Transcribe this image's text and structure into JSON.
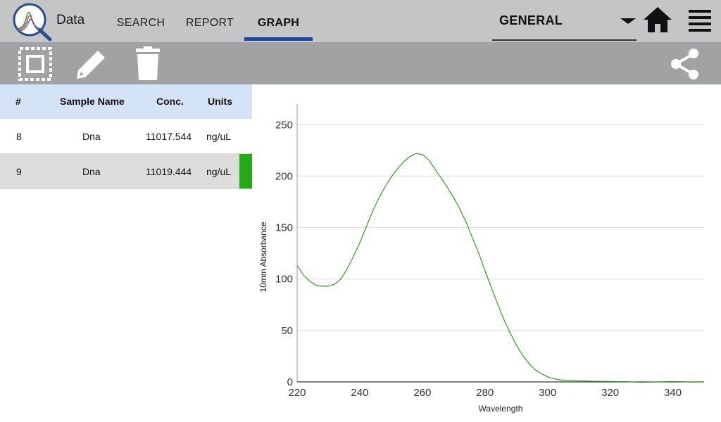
{
  "header": {
    "app_title": "Data",
    "tabs": [
      {
        "label": "SEARCH",
        "active": false
      },
      {
        "label": "REPORT",
        "active": false
      },
      {
        "label": "GRAPH",
        "active": true
      }
    ],
    "mode_select": {
      "value": "GENERAL"
    },
    "icons": {
      "logo": "spectrum-magnifier-logo",
      "home": "home-icon",
      "menu": "hamburger-menu-icon",
      "dropdown": "chevron-down-icon"
    }
  },
  "toolbar": {
    "icons": [
      "select-all-icon",
      "edit-pencil-icon",
      "trash-icon",
      "share-icon"
    ]
  },
  "table": {
    "columns": [
      "#",
      "Sample Name",
      "Conc.",
      "Units"
    ],
    "rows": [
      {
        "num": "8",
        "name": "Dna",
        "conc": "11017.544",
        "units": "ng/uL",
        "selected": false
      },
      {
        "num": "9",
        "name": "Dna",
        "conc": "11019.444",
        "units": "ng/uL",
        "selected": true,
        "marker_color": "#22ab16"
      }
    ]
  },
  "chart_data": {
    "type": "line",
    "xlabel": "Wavelength",
    "ylabel": "10mm Absorbance",
    "xlim": [
      220,
      350
    ],
    "ylim": [
      0,
      270
    ],
    "xticks": [
      "220",
      "240",
      "260",
      "280",
      "300",
      "320",
      "340"
    ],
    "yticks": [
      "0",
      "50",
      "100",
      "150",
      "200",
      "250"
    ],
    "grid": "horizontal",
    "series": [
      {
        "color": "#2da01e",
        "x": [
          220,
          222,
          224,
          226,
          228,
          230,
          232,
          234,
          236,
          238,
          240,
          242,
          244,
          246,
          248,
          250,
          252,
          254,
          256,
          258,
          260,
          262,
          264,
          266,
          268,
          270,
          272,
          274,
          276,
          278,
          280,
          282,
          284,
          286,
          288,
          290,
          292,
          294,
          296,
          298,
          300,
          302,
          304,
          306,
          308,
          310,
          315,
          320,
          325,
          330,
          335,
          340,
          345,
          350
        ],
        "y": [
          113,
          104,
          98,
          94,
          93,
          93,
          95,
          100,
          110,
          122,
          135,
          150,
          165,
          178,
          189,
          199,
          207,
          214,
          219,
          222,
          221,
          216,
          207,
          198,
          189,
          179,
          168,
          155,
          140,
          125,
          108,
          92,
          76,
          61,
          48,
          36,
          26,
          18,
          12,
          8,
          5,
          3,
          2,
          1.5,
          1,
          1,
          0.6,
          0.5,
          0.3,
          -0.5,
          0,
          0.5,
          0,
          0
        ]
      }
    ]
  }
}
